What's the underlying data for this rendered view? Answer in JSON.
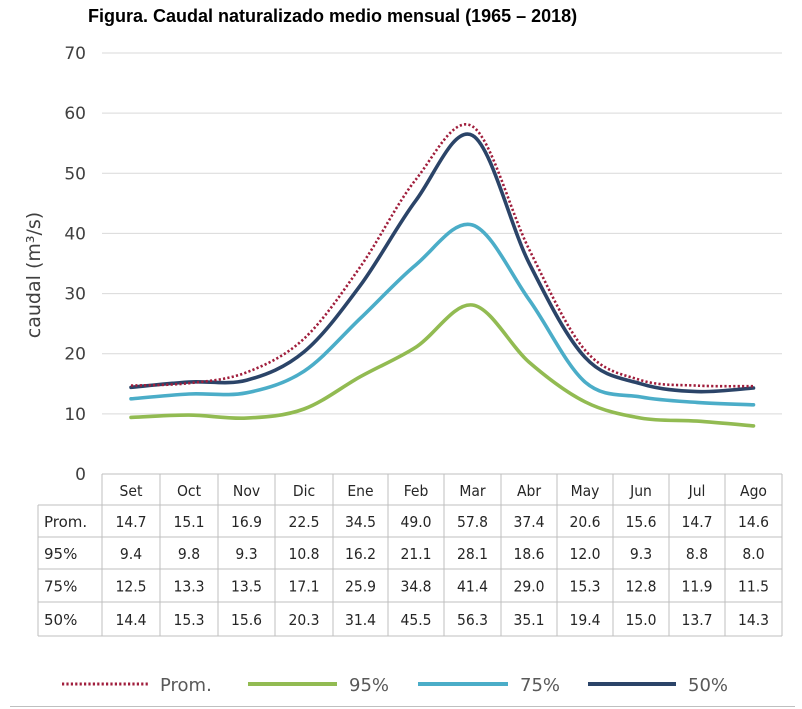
{
  "title": "Figura. Caudal naturalizado medio mensual (1965 – 2018)",
  "chart_data": {
    "type": "line",
    "ylabel": "caudal (m³/s)",
    "ylim": [
      0,
      70
    ],
    "yticks": [
      0,
      10,
      20,
      30,
      40,
      50,
      60,
      70
    ],
    "grid": true,
    "categories": [
      "Set",
      "Oct",
      "Nov",
      "Dic",
      "Ene",
      "Feb",
      "Mar",
      "Abr",
      "May",
      "Jun",
      "Jul",
      "Ago"
    ],
    "series": [
      {
        "name": "Prom.",
        "row_label": "Prom.",
        "color": "#a01e3c",
        "style": "dotted",
        "values": [
          14.7,
          15.1,
          16.9,
          22.5,
          34.5,
          49.0,
          57.8,
          37.4,
          20.6,
          15.6,
          14.7,
          14.6
        ],
        "labels": [
          "14.7",
          "15.1",
          "16.9",
          "22.5",
          "34.5",
          "49.0",
          "57.8",
          "37.4",
          "20.6",
          "15.6",
          "14.7",
          "14.6"
        ]
      },
      {
        "name": "95%",
        "row_label": "95%",
        "color": "#92bb52",
        "style": "solid",
        "values": [
          9.4,
          9.8,
          9.3,
          10.8,
          16.2,
          21.1,
          28.1,
          18.6,
          12.0,
          9.3,
          8.8,
          8.0
        ],
        "labels": [
          "9.4",
          "9.8",
          "9.3",
          "10.8",
          "16.2",
          "21.1",
          "28.1",
          "18.6",
          "12.0",
          "9.3",
          "8.8",
          "8.0"
        ]
      },
      {
        "name": "75%",
        "row_label": "75%",
        "color": "#4badc8",
        "style": "solid",
        "values": [
          12.5,
          13.3,
          13.5,
          17.1,
          25.9,
          34.8,
          41.4,
          29.0,
          15.3,
          12.8,
          11.9,
          11.5
        ],
        "labels": [
          "12.5",
          "13.3",
          "13.5",
          "17.1",
          "25.9",
          "34.8",
          "41.4",
          "29.0",
          "15.3",
          "12.8",
          "11.9",
          "11.5"
        ]
      },
      {
        "name": "50%",
        "row_label": "50%",
        "color": "#2b4468",
        "style": "solid",
        "values": [
          14.4,
          15.3,
          15.6,
          20.3,
          31.4,
          45.5,
          56.3,
          35.1,
          19.4,
          15.0,
          13.7,
          14.3
        ],
        "labels": [
          "14.4",
          "15.3",
          "15.6",
          "20.3",
          "31.4",
          "45.5",
          "56.3",
          "35.1",
          "19.4",
          "15.0",
          "13.7",
          "14.3"
        ]
      }
    ],
    "legend": {
      "placement": "bottom"
    }
  }
}
